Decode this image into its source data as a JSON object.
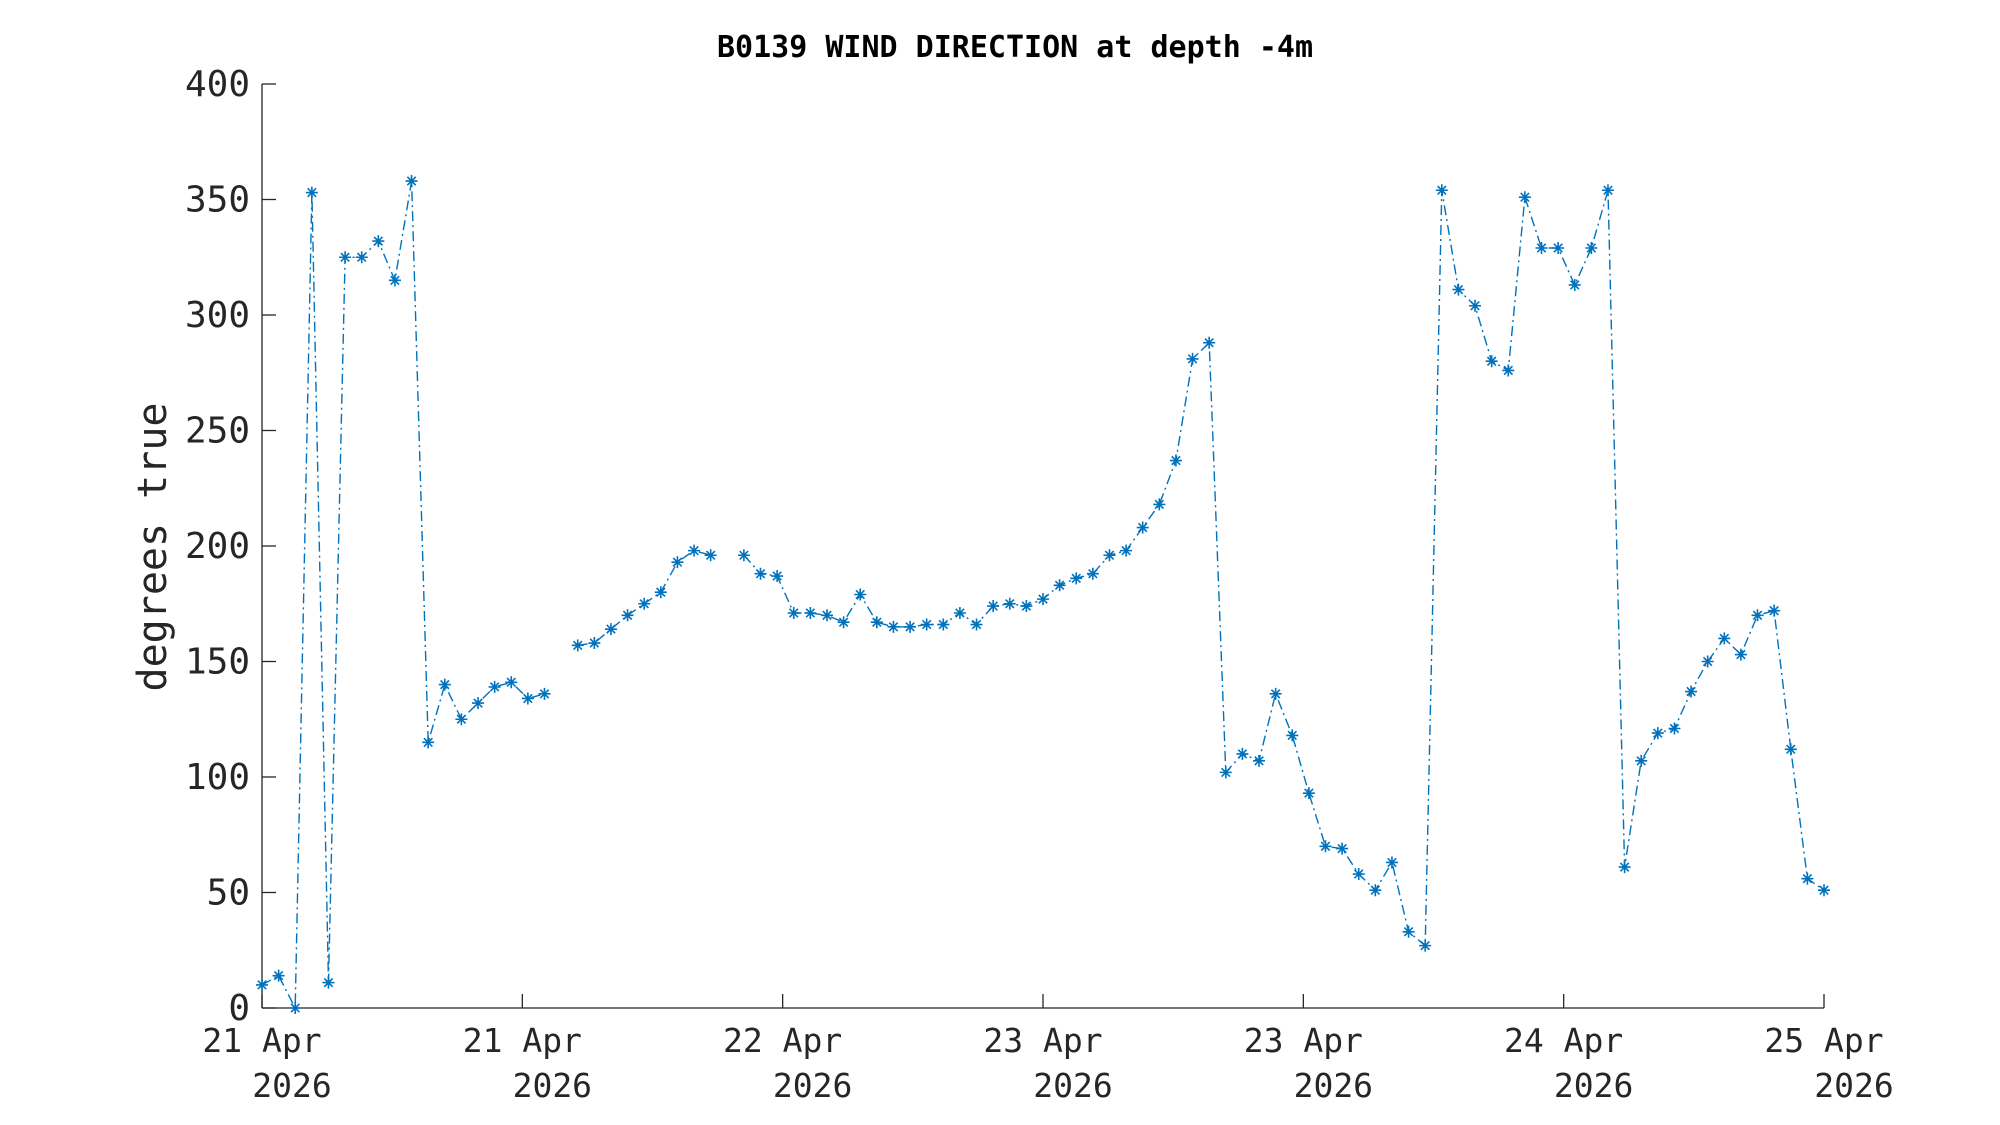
{
  "chart_data": {
    "type": "line",
    "title": "B0139 WIND DIRECTION at depth -4m",
    "xlabel": "",
    "ylabel": "degrees true",
    "ylim": [
      0,
      400
    ],
    "yticks": [
      0,
      50,
      100,
      150,
      200,
      250,
      300,
      350,
      400
    ],
    "xticks": [
      {
        "line1": "21 Apr",
        "line2": "2026"
      },
      {
        "line1": "21 Apr",
        "line2": "2026"
      },
      {
        "line1": "22 Apr",
        "line2": "2026"
      },
      {
        "line1": "23 Apr",
        "line2": "2026"
      },
      {
        "line1": "23 Apr",
        "line2": "2026"
      },
      {
        "line1": "24 Apr",
        "line2": "2026"
      },
      {
        "line1": "25 Apr",
        "line2": "2026"
      }
    ],
    "grid": false,
    "marker": "asterisk",
    "line_style": "dash-dot",
    "color": "#0072BD",
    "series": [
      {
        "values": [
          10,
          14,
          0,
          353,
          11,
          325,
          325,
          332,
          315,
          358,
          115,
          140,
          125,
          132,
          139,
          141,
          134,
          136,
          null,
          157,
          158,
          164,
          170,
          175,
          180,
          193,
          198,
          196,
          null,
          196,
          188,
          187,
          171,
          171,
          170,
          167,
          179,
          167,
          165,
          165,
          166,
          166,
          171,
          166,
          174,
          175,
          174,
          177,
          183,
          186,
          188,
          196,
          198,
          208,
          218,
          237,
          281,
          288,
          102,
          110,
          107,
          136,
          118,
          93,
          70,
          69,
          58,
          51,
          63,
          33,
          27,
          354,
          311,
          304,
          280,
          276,
          351,
          329,
          329,
          313,
          329,
          354,
          61,
          107,
          119,
          121,
          137,
          150,
          160,
          153,
          170,
          172,
          112,
          56,
          51
        ]
      }
    ]
  }
}
